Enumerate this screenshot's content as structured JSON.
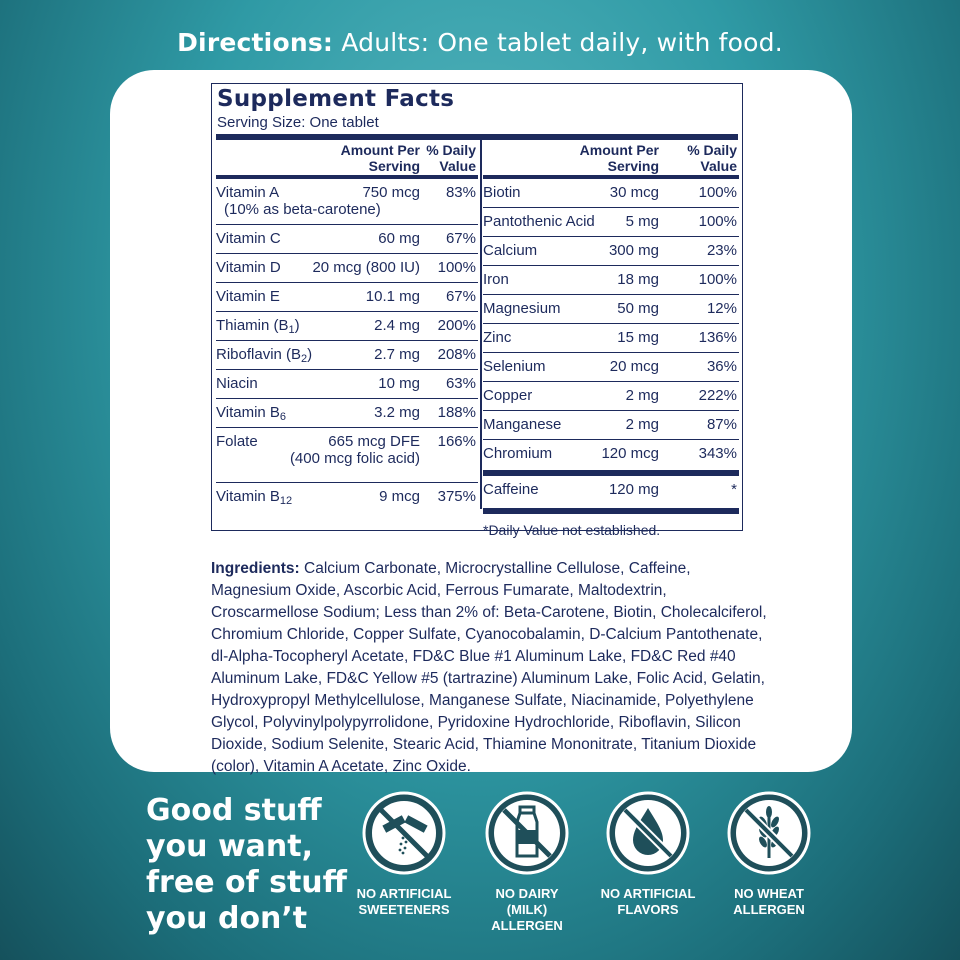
{
  "directions": {
    "label": "Directions:",
    "text": "Adults: One tablet daily, with food."
  },
  "facts": {
    "title": "Supplement Facts",
    "serving_size": "Serving Size: One tablet",
    "col_amount": [
      "Amount Per",
      "Serving"
    ],
    "col_dv": [
      "% Daily",
      "Value"
    ],
    "left_rows": [
      {
        "name": "Vitamin A",
        "amount": "750 mcg",
        "dv": "83%",
        "note": "(10% as beta-carotene)"
      },
      {
        "name": "Vitamin C",
        "amount": "60 mg",
        "dv": "67%"
      },
      {
        "name": "Vitamin D",
        "amount": "20 mcg (800 IU)",
        "dv": "100%"
      },
      {
        "name": "Vitamin E",
        "amount": "10.1 mg",
        "dv": "67%"
      },
      {
        "name": "Thiamin (B",
        "sub": "1",
        "suffix": ")",
        "amount": "2.4 mg",
        "dv": "200%"
      },
      {
        "name": "Riboflavin (B",
        "sub": "2",
        "suffix": ")",
        "amount": "2.7 mg",
        "dv": "208%"
      },
      {
        "name": "Niacin",
        "amount": "10 mg",
        "dv": "63%"
      },
      {
        "name": "Vitamin B",
        "sub": "6",
        "amount": "3.2 mg",
        "dv": "188%"
      },
      {
        "name": "Folate",
        "amount": "665 mcg DFE",
        "dv": "166%",
        "line2": "(400 mcg folic acid)"
      },
      {
        "name": "Vitamin B",
        "sub": "12",
        "amount": "9 mcg",
        "dv": "375%"
      }
    ],
    "right_rows": [
      {
        "name": "Biotin",
        "amount": "30 mcg",
        "dv": "100%"
      },
      {
        "name": "Pantothenic Acid",
        "amount": "5 mg",
        "dv": "100%"
      },
      {
        "name": "Calcium",
        "amount": "300 mg",
        "dv": "23%"
      },
      {
        "name": "Iron",
        "amount": "18 mg",
        "dv": "100%"
      },
      {
        "name": "Magnesium",
        "amount": "50 mg",
        "dv": "12%"
      },
      {
        "name": "Zinc",
        "amount": "15 mg",
        "dv": "136%"
      },
      {
        "name": "Selenium",
        "amount": "20 mcg",
        "dv": "36%"
      },
      {
        "name": "Copper",
        "amount": "2 mg",
        "dv": "222%"
      },
      {
        "name": "Manganese",
        "amount": "2 mg",
        "dv": "87%"
      },
      {
        "name": "Chromium",
        "amount": "120 mcg",
        "dv": "343%"
      }
    ],
    "caffeine": {
      "name": "Caffeine",
      "amount": "120 mg",
      "dv": "*"
    },
    "footnote": "*Daily Value not established."
  },
  "ingredients": {
    "label": "Ingredients:",
    "text": "Calcium Carbonate, Microcrystalline Cellulose, Caffeine, Magnesium Oxide, Ascorbic Acid, Ferrous Fumarate, Maltodextrin, Croscarmellose Sodium; Less than 2% of: Beta-Carotene, Biotin, Cholecalciferol, Chromium Chloride, Copper Sulfate, Cyanocobalamin, D-Calcium Pantothenate, dl-Alpha-Tocopheryl Acetate, FD&C Blue #1 Aluminum Lake, FD&C Red #40 Aluminum Lake, FD&C Yellow #5 (tartrazine) Aluminum Lake, Folic Acid, Gelatin, Hydroxypropyl Methylcellulose, Manganese Sulfate, Niacinamide, Polyethylene Glycol, Polyvinylpolypyrrolidone, Pyridoxine Hydrochloride, Riboflavin, Silicon Dioxide, Sodium Selenite, Stearic Acid, Thiamine Mononitrate, Titanium Dioxide (color), Vitamin A Acetate, Zinc Oxide."
  },
  "tagline": [
    "Good stuff",
    "you want,",
    "free of stuff",
    "you don’t"
  ],
  "badges": [
    {
      "icon": "sweetener-packet-icon",
      "caption": [
        "NO ARTIFICIAL",
        "SWEETENERS"
      ]
    },
    {
      "icon": "milk-bottle-icon",
      "caption": [
        "NO DAIRY",
        "(MILK)",
        "ALLERGEN"
      ]
    },
    {
      "icon": "droplet-icon",
      "caption": [
        "NO ARTIFICIAL",
        "FLAVORS"
      ]
    },
    {
      "icon": "wheat-icon",
      "caption": [
        "NO WHEAT",
        "ALLERGEN"
      ]
    }
  ],
  "colors": {
    "navy": "#1d2a5c",
    "teal": "#2f9aa5",
    "badge_fill": "#1f4f5a"
  }
}
